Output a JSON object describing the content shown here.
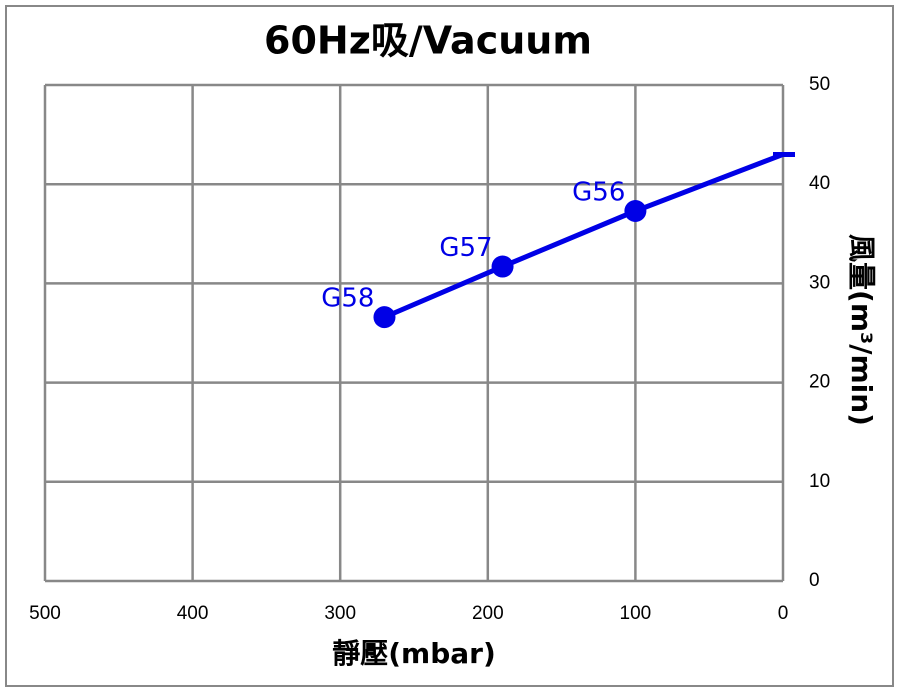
{
  "chart_data": {
    "type": "line",
    "title": "60Hz吸/Vacuum",
    "x_label": "靜壓(mbar)",
    "y_label": "風量(m³/min)",
    "x": [
      270,
      190,
      100,
      0
    ],
    "series": [
      {
        "name": "Vacuum",
        "color": "#0000e6",
        "values": [
          26.6,
          31.7,
          37.3,
          43
        ],
        "point_labels": [
          "G58",
          "G57",
          "G56",
          null
        ]
      }
    ],
    "xlim": [
      500,
      0
    ],
    "xticks": [
      500,
      400,
      300,
      200,
      100,
      0
    ],
    "ylim": [
      0,
      50
    ],
    "yticks": [
      0,
      10,
      20,
      30,
      40,
      50
    ],
    "grid": true,
    "y_axis_side": "right"
  }
}
